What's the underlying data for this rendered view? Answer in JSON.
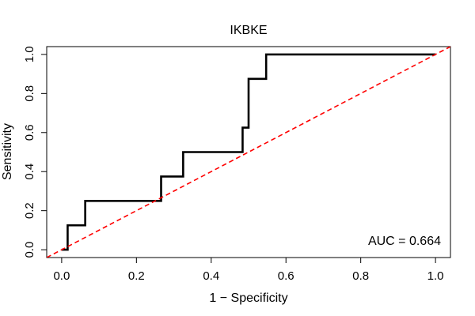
{
  "chart_data": {
    "type": "line",
    "title": "IKBKE",
    "xlabel": "1 − Specificity",
    "ylabel": "Sensitivity",
    "xlim": [
      -0.04,
      1.04
    ],
    "ylim": [
      -0.04,
      1.04
    ],
    "x_ticks": [
      0.0,
      0.2,
      0.4,
      0.6,
      0.8,
      1.0
    ],
    "x_tick_labels": [
      "0.0",
      "0.2",
      "0.4",
      "0.6",
      "0.8",
      "1.0"
    ],
    "y_ticks": [
      0.0,
      0.2,
      0.4,
      0.6,
      0.8,
      1.0
    ],
    "y_tick_labels": [
      "0.0",
      "0.2",
      "0.4",
      "0.6",
      "0.8",
      "1.0"
    ],
    "grid": false,
    "series": [
      {
        "name": "ROC curve",
        "color": "#000000",
        "style": "solid",
        "points": [
          [
            0.0,
            0.0
          ],
          [
            0.016,
            0.0
          ],
          [
            0.016,
            0.125
          ],
          [
            0.063,
            0.125
          ],
          [
            0.063,
            0.25
          ],
          [
            0.266,
            0.25
          ],
          [
            0.266,
            0.375
          ],
          [
            0.325,
            0.375
          ],
          [
            0.325,
            0.5
          ],
          [
            0.484,
            0.5
          ],
          [
            0.484,
            0.625
          ],
          [
            0.5,
            0.625
          ],
          [
            0.5,
            0.875
          ],
          [
            0.547,
            0.875
          ],
          [
            0.547,
            1.0
          ],
          [
            1.0,
            1.0
          ]
        ]
      },
      {
        "name": "Chance line",
        "color": "#ff0000",
        "style": "dashed",
        "points": [
          [
            -0.04,
            -0.04
          ],
          [
            1.04,
            1.04
          ]
        ]
      }
    ],
    "annotation": "AUC = 0.664"
  }
}
